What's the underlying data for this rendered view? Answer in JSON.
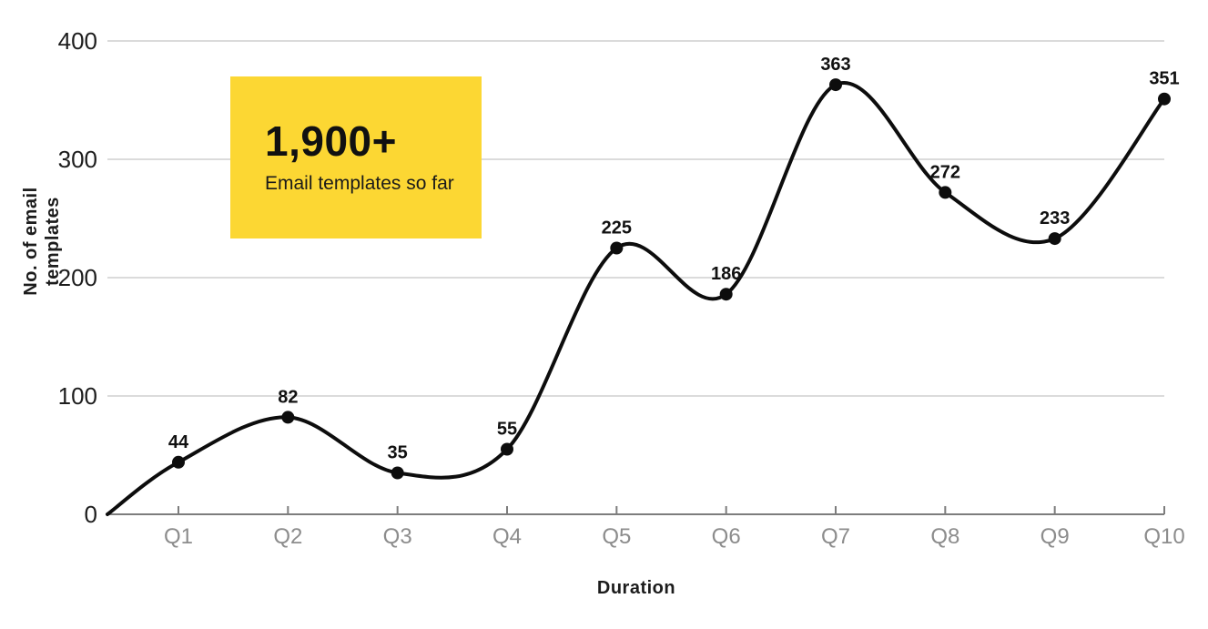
{
  "chart_data": {
    "type": "line",
    "categories": [
      "Q1",
      "Q2",
      "Q3",
      "Q4",
      "Q5",
      "Q6",
      "Q7",
      "Q8",
      "Q9",
      "Q10"
    ],
    "values": [
      44,
      82,
      35,
      55,
      225,
      186,
      363,
      272,
      233,
      351
    ],
    "title": "",
    "xlabel": "Duration",
    "ylabel": "No. of email templates",
    "yticks": [
      0,
      100,
      200,
      300,
      400
    ],
    "ylim": [
      0,
      400
    ],
    "grid": "horizontal",
    "legend": "none",
    "smooth": true,
    "line_starts_at_zero_origin": true,
    "show_point_labels": true,
    "colors": {
      "line": "#0d0d0d",
      "marker": "#0d0d0d",
      "point_label": "#111111",
      "gridline": "#cfcfcf",
      "axis": "#7d7d7d",
      "x_tick_label": "#8c8c8c",
      "y_tick_label": "#1d1d1d",
      "axis_title": "#1c1c1c",
      "background": "#ffffff"
    }
  },
  "callout": {
    "headline": "1,900+",
    "subtext": "Email templates so far",
    "background": "#FCD733",
    "text_color": "#111111"
  }
}
